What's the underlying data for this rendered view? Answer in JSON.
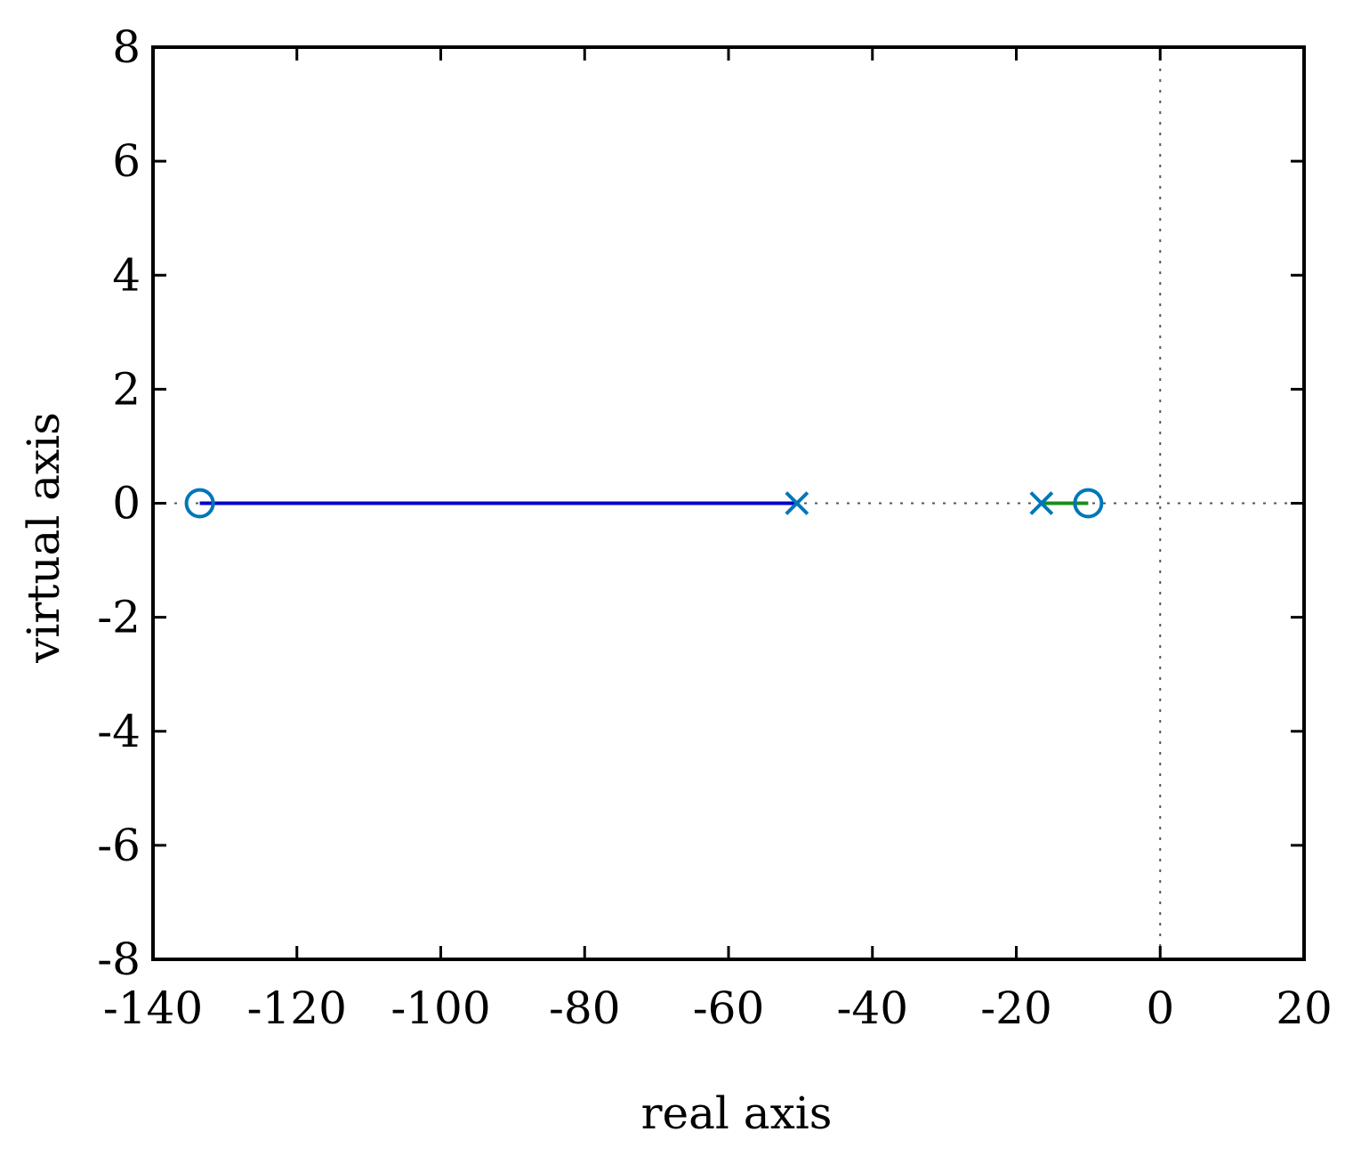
{
  "chart_data": {
    "type": "line",
    "title": "",
    "xlabel": "real axis",
    "ylabel": "virtual axis",
    "xlim": [
      -140,
      20
    ],
    "ylim": [
      -8,
      8
    ],
    "xticks": [
      -140,
      -120,
      -100,
      -80,
      -60,
      -40,
      -20,
      0,
      20
    ],
    "yticks": [
      -8,
      -6,
      -4,
      -2,
      0,
      2,
      4,
      6,
      8
    ],
    "xtick_labels": [
      "-140",
      "-120",
      "-100",
      "-80",
      "-60",
      "-40",
      "-20",
      "0",
      "20"
    ],
    "ytick_labels": [
      "-8",
      "-6",
      "-4",
      "-2",
      "0",
      "2",
      "4",
      "6",
      "8"
    ],
    "grid": false,
    "reference_lines": {
      "x": 0,
      "y": 0,
      "style": "dotted"
    },
    "series": [
      {
        "color": "#0000c8",
        "x": [
          -133.5,
          -50.5
        ],
        "y": [
          0,
          0
        ]
      },
      {
        "color": "#1a8c1a",
        "x": [
          -16.5,
          -10
        ],
        "y": [
          0,
          0
        ]
      }
    ],
    "markers": [
      {
        "kind": "zero",
        "x": -133.5,
        "y": 0,
        "color": "#0077b6"
      },
      {
        "kind": "pole",
        "x": -50.5,
        "y": 0,
        "color": "#0077b6"
      },
      {
        "kind": "pole",
        "x": -16.5,
        "y": 0,
        "color": "#0077b6"
      },
      {
        "kind": "zero",
        "x": -10,
        "y": 0,
        "color": "#0077b6"
      }
    ]
  }
}
